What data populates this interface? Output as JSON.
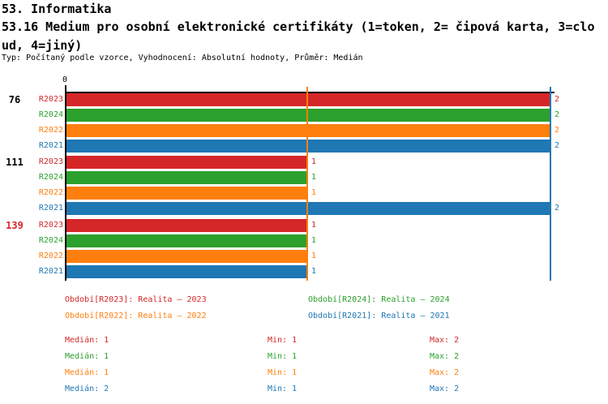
{
  "header": {
    "line1": "53. Informatika",
    "line2": "53.16 Medium pro osobní elektronické certifikáty (1=token, 2= čipová karta, 3=clo",
    "line3": "ud, 4=jiný)",
    "meta": "Typ: Počítaný podle vzorce, Vyhodnocení: Absolutní hodnoty, Průměr: Medián"
  },
  "colors": {
    "R2023": "#d62728",
    "R2024": "#2ca02c",
    "R2022": "#ff7f0e",
    "R2021": "#1f77b4"
  },
  "chart_data": {
    "type": "bar",
    "orientation": "horizontal",
    "title": "53.16 Medium pro osobní elektronické certifikáty (1=token, 2= čipová karta, 3=cloud, 4=jiný)",
    "axis": {
      "origin_label": "0",
      "xlim": [
        0,
        2
      ],
      "grid": false
    },
    "series_order": [
      "R2023",
      "R2024",
      "R2022",
      "R2021"
    ],
    "categories": [
      "76",
      "111",
      "139"
    ],
    "groups": [
      {
        "label": "76",
        "label_color": "#000000",
        "bars": [
          {
            "series": "R2023",
            "value": 2
          },
          {
            "series": "R2024",
            "value": 2
          },
          {
            "series": "R2022",
            "value": 2
          },
          {
            "series": "R2021",
            "value": 2
          }
        ]
      },
      {
        "label": "111",
        "label_color": "#000000",
        "bars": [
          {
            "series": "R2023",
            "value": 1
          },
          {
            "series": "R2024",
            "value": 1
          },
          {
            "series": "R2022",
            "value": 1
          },
          {
            "series": "R2021",
            "value": 2
          }
        ]
      },
      {
        "label": "139",
        "label_color": "#d62728",
        "bars": [
          {
            "series": "R2023",
            "value": 1
          },
          {
            "series": "R2024",
            "value": 1
          },
          {
            "series": "R2022",
            "value": 1
          },
          {
            "series": "R2021",
            "value": 1
          }
        ]
      }
    ],
    "median_lines": [
      {
        "series": "R2023",
        "value": 1
      },
      {
        "series": "R2024",
        "value": 1
      },
      {
        "series": "R2022",
        "value": 1
      },
      {
        "series": "R2021",
        "value": 2
      }
    ]
  },
  "legend": {
    "items": [
      {
        "series": "R2023",
        "label": "Období[R2023]: Realita – 2023"
      },
      {
        "series": "R2024",
        "label": "Období[R2024]: Realita – 2024"
      },
      {
        "series": "R2022",
        "label": "Období[R2022]: Realita – 2022"
      },
      {
        "series": "R2021",
        "label": "Období[R2021]: Realita – 2021"
      }
    ]
  },
  "stats": {
    "rows": [
      {
        "series": "R2023",
        "median": "Medián: 1",
        "min": "Min: 1",
        "max": "Max: 2"
      },
      {
        "series": "R2024",
        "median": "Medián: 1",
        "min": "Min: 1",
        "max": "Max: 2"
      },
      {
        "series": "R2022",
        "median": "Medián: 1",
        "min": "Min: 1",
        "max": "Max: 2"
      },
      {
        "series": "R2021",
        "median": "Medián: 2",
        "min": "Min: 1",
        "max": "Max: 2"
      }
    ]
  }
}
